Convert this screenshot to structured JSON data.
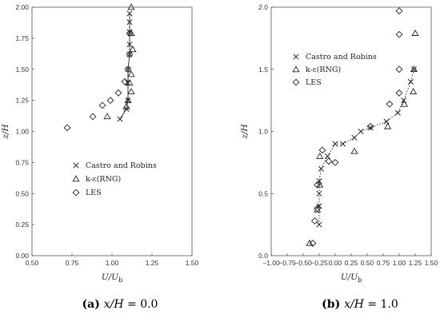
{
  "chart_data": [
    {
      "type": "scatter",
      "xlabel": "U/U",
      "xlabel_sub": "b",
      "ylabel": "z/H",
      "xlim": [
        0.5,
        1.5
      ],
      "ylim": [
        0.0,
        2.0
      ],
      "xticks": [
        "0.50",
        "0.75",
        "1.00",
        "1.25",
        "1.50"
      ],
      "yticks": [
        "0.00",
        "0.25",
        "0.50",
        "0.75",
        "1.00",
        "1.25",
        "1.50",
        "1.75",
        "2.00"
      ],
      "legend_position": "center-left",
      "caption": {
        "letter": "(a)",
        "var": "x/H",
        "rest": " = 0.0"
      },
      "series": [
        {
          "name": "Castro and Robins",
          "marker": "x",
          "line": "solid",
          "x": [
            1.05,
            1.09,
            1.1,
            1.1,
            1.1,
            1.11,
            1.11,
            1.11,
            1.11,
            1.11
          ],
          "y": [
            1.1,
            1.18,
            1.25,
            1.39,
            1.5,
            1.62,
            1.7,
            1.8,
            1.88,
            1.95
          ]
        },
        {
          "name": "k-ε(RNG)",
          "marker": "triangle",
          "x": [
            0.97,
            1.09,
            1.1,
            1.12,
            1.11,
            1.12,
            1.13,
            1.12,
            1.12
          ],
          "y": [
            1.12,
            1.2,
            1.25,
            1.32,
            1.39,
            1.46,
            1.66,
            1.79,
            2.0
          ]
        },
        {
          "name": "LES",
          "marker": "diamond",
          "x": [
            0.72,
            0.88,
            0.94,
            0.99,
            1.04,
            1.08,
            1.1,
            1.11,
            1.11
          ],
          "y": [
            1.03,
            1.12,
            1.21,
            1.25,
            1.31,
            1.4,
            1.5,
            1.62,
            1.79
          ]
        }
      ]
    },
    {
      "type": "scatter",
      "xlabel": "U/U",
      "xlabel_sub": "b",
      "ylabel": "z/H",
      "xlim": [
        -1.0,
        1.5
      ],
      "ylim": [
        0.0,
        2.0
      ],
      "xticks": [
        "−1.00",
        "−0.75",
        "−0.50",
        "−0.25",
        "0.00",
        "0.25",
        "0.50",
        "0.75",
        "1.00",
        "1.25",
        "1.50"
      ],
      "yticks": [
        "0.0",
        "0.5",
        "1.0",
        "1.5",
        "2.0"
      ],
      "legend_position": "top-left",
      "caption": {
        "letter": "(b)",
        "var": "x/H",
        "rest": " = 1.0"
      },
      "series": [
        {
          "name": "Castro and Robins",
          "marker": "x",
          "line": "dotted",
          "x": [
            -0.25,
            -0.25,
            -0.25,
            -0.25,
            -0.22,
            -0.12,
            0.0,
            0.12,
            0.3,
            0.4,
            0.55,
            0.8,
            0.98,
            1.07,
            1.18,
            1.23
          ],
          "y": [
            0.25,
            0.4,
            0.5,
            0.6,
            0.7,
            0.8,
            0.9,
            0.9,
            0.95,
            1.0,
            1.03,
            1.08,
            1.15,
            1.25,
            1.4,
            1.5
          ]
        },
        {
          "name": "k-ε(RNG)",
          "marker": "triangle",
          "x": [
            -0.4,
            -0.28,
            -0.24,
            -0.24,
            0.3,
            0.82,
            1.08,
            1.22,
            1.23,
            1.25
          ],
          "y": [
            0.1,
            0.37,
            0.57,
            0.8,
            0.84,
            1.04,
            1.22,
            1.32,
            1.5,
            1.79
          ]
        },
        {
          "name": "LES",
          "marker": "diamond",
          "x": [
            -0.35,
            -0.32,
            -0.28,
            -0.28,
            -0.2,
            -0.1,
            0.0,
            0.55,
            0.85,
            1.0,
            1.0,
            1.0,
            1.0
          ],
          "y": [
            0.1,
            0.28,
            0.38,
            0.57,
            0.85,
            0.76,
            0.75,
            1.04,
            1.22,
            1.31,
            1.5,
            1.78,
            1.97
          ]
        }
      ]
    }
  ]
}
